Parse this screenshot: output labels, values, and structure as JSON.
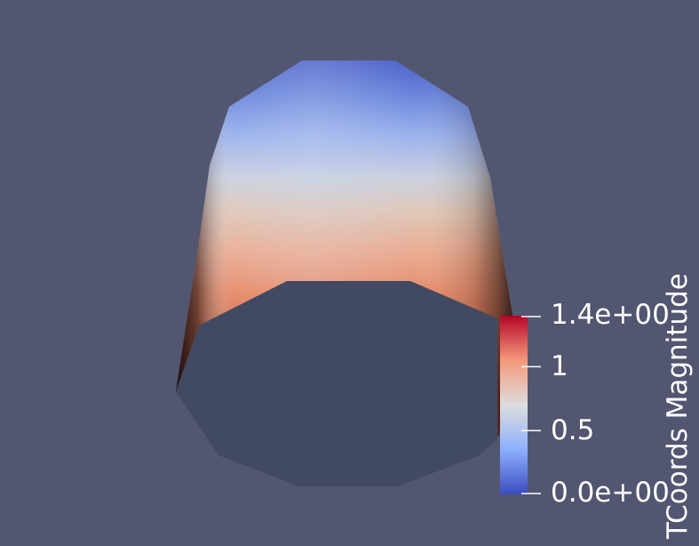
{
  "viewport": {
    "background": "#525670"
  },
  "scalar_bar": {
    "title": "TCoords Magnitude",
    "range": [
      0.0,
      1.4
    ],
    "ticks": [
      {
        "value": 1.4,
        "label": "1.4e+00"
      },
      {
        "value": 1.0,
        "label": "1"
      },
      {
        "value": 0.5,
        "label": "0.5"
      },
      {
        "value": 0.0,
        "label": "0.0e+00"
      }
    ],
    "colormap": [
      "#3b4cc0",
      "#8db0fe",
      "#dddddd",
      "#f49a7b",
      "#b40426"
    ]
  },
  "surface": {
    "cap_color": "#424a63",
    "shade_color": "#2a2020"
  }
}
